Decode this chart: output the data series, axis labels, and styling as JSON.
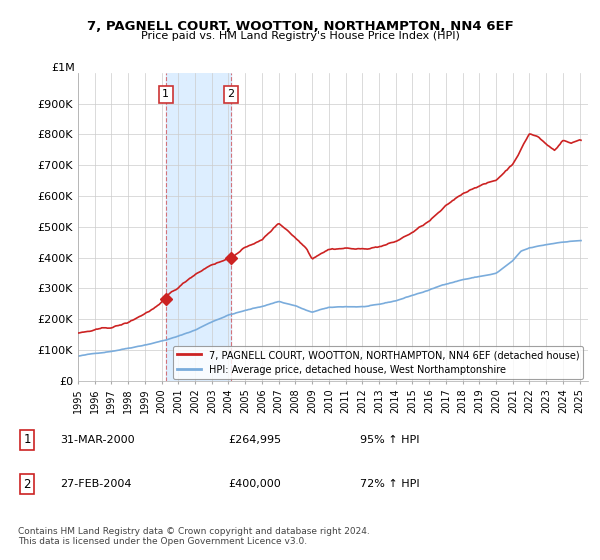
{
  "title": "7, PAGNELL COURT, WOOTTON, NORTHAMPTON, NN4 6EF",
  "subtitle": "Price paid vs. HM Land Registry's House Price Index (HPI)",
  "legend_line1": "7, PAGNELL COURT, WOOTTON, NORTHAMPTON, NN4 6EF (detached house)",
  "legend_line2": "HPI: Average price, detached house, West Northamptonshire",
  "sale1_label": "1",
  "sale1_date": "31-MAR-2000",
  "sale1_price": "£264,995",
  "sale1_hpi": "95% ↑ HPI",
  "sale1_year": 2000.25,
  "sale1_value": 264995,
  "sale2_label": "2",
  "sale2_date": "27-FEB-2004",
  "sale2_price": "£400,000",
  "sale2_hpi": "72% ↑ HPI",
  "sale2_year": 2004.16,
  "sale2_value": 400000,
  "hpi_color": "#7aacdc",
  "price_color": "#cc2222",
  "shaded_color": "#ddeeff",
  "footnote": "Contains HM Land Registry data © Crown copyright and database right 2024.\nThis data is licensed under the Open Government Licence v3.0.",
  "ylim": [
    0,
    1000000
  ],
  "yticks": [
    0,
    100000,
    200000,
    300000,
    400000,
    500000,
    600000,
    700000,
    800000,
    900000
  ],
  "ylabel_top": "£1M",
  "xmin": 1995,
  "xmax": 2025
}
